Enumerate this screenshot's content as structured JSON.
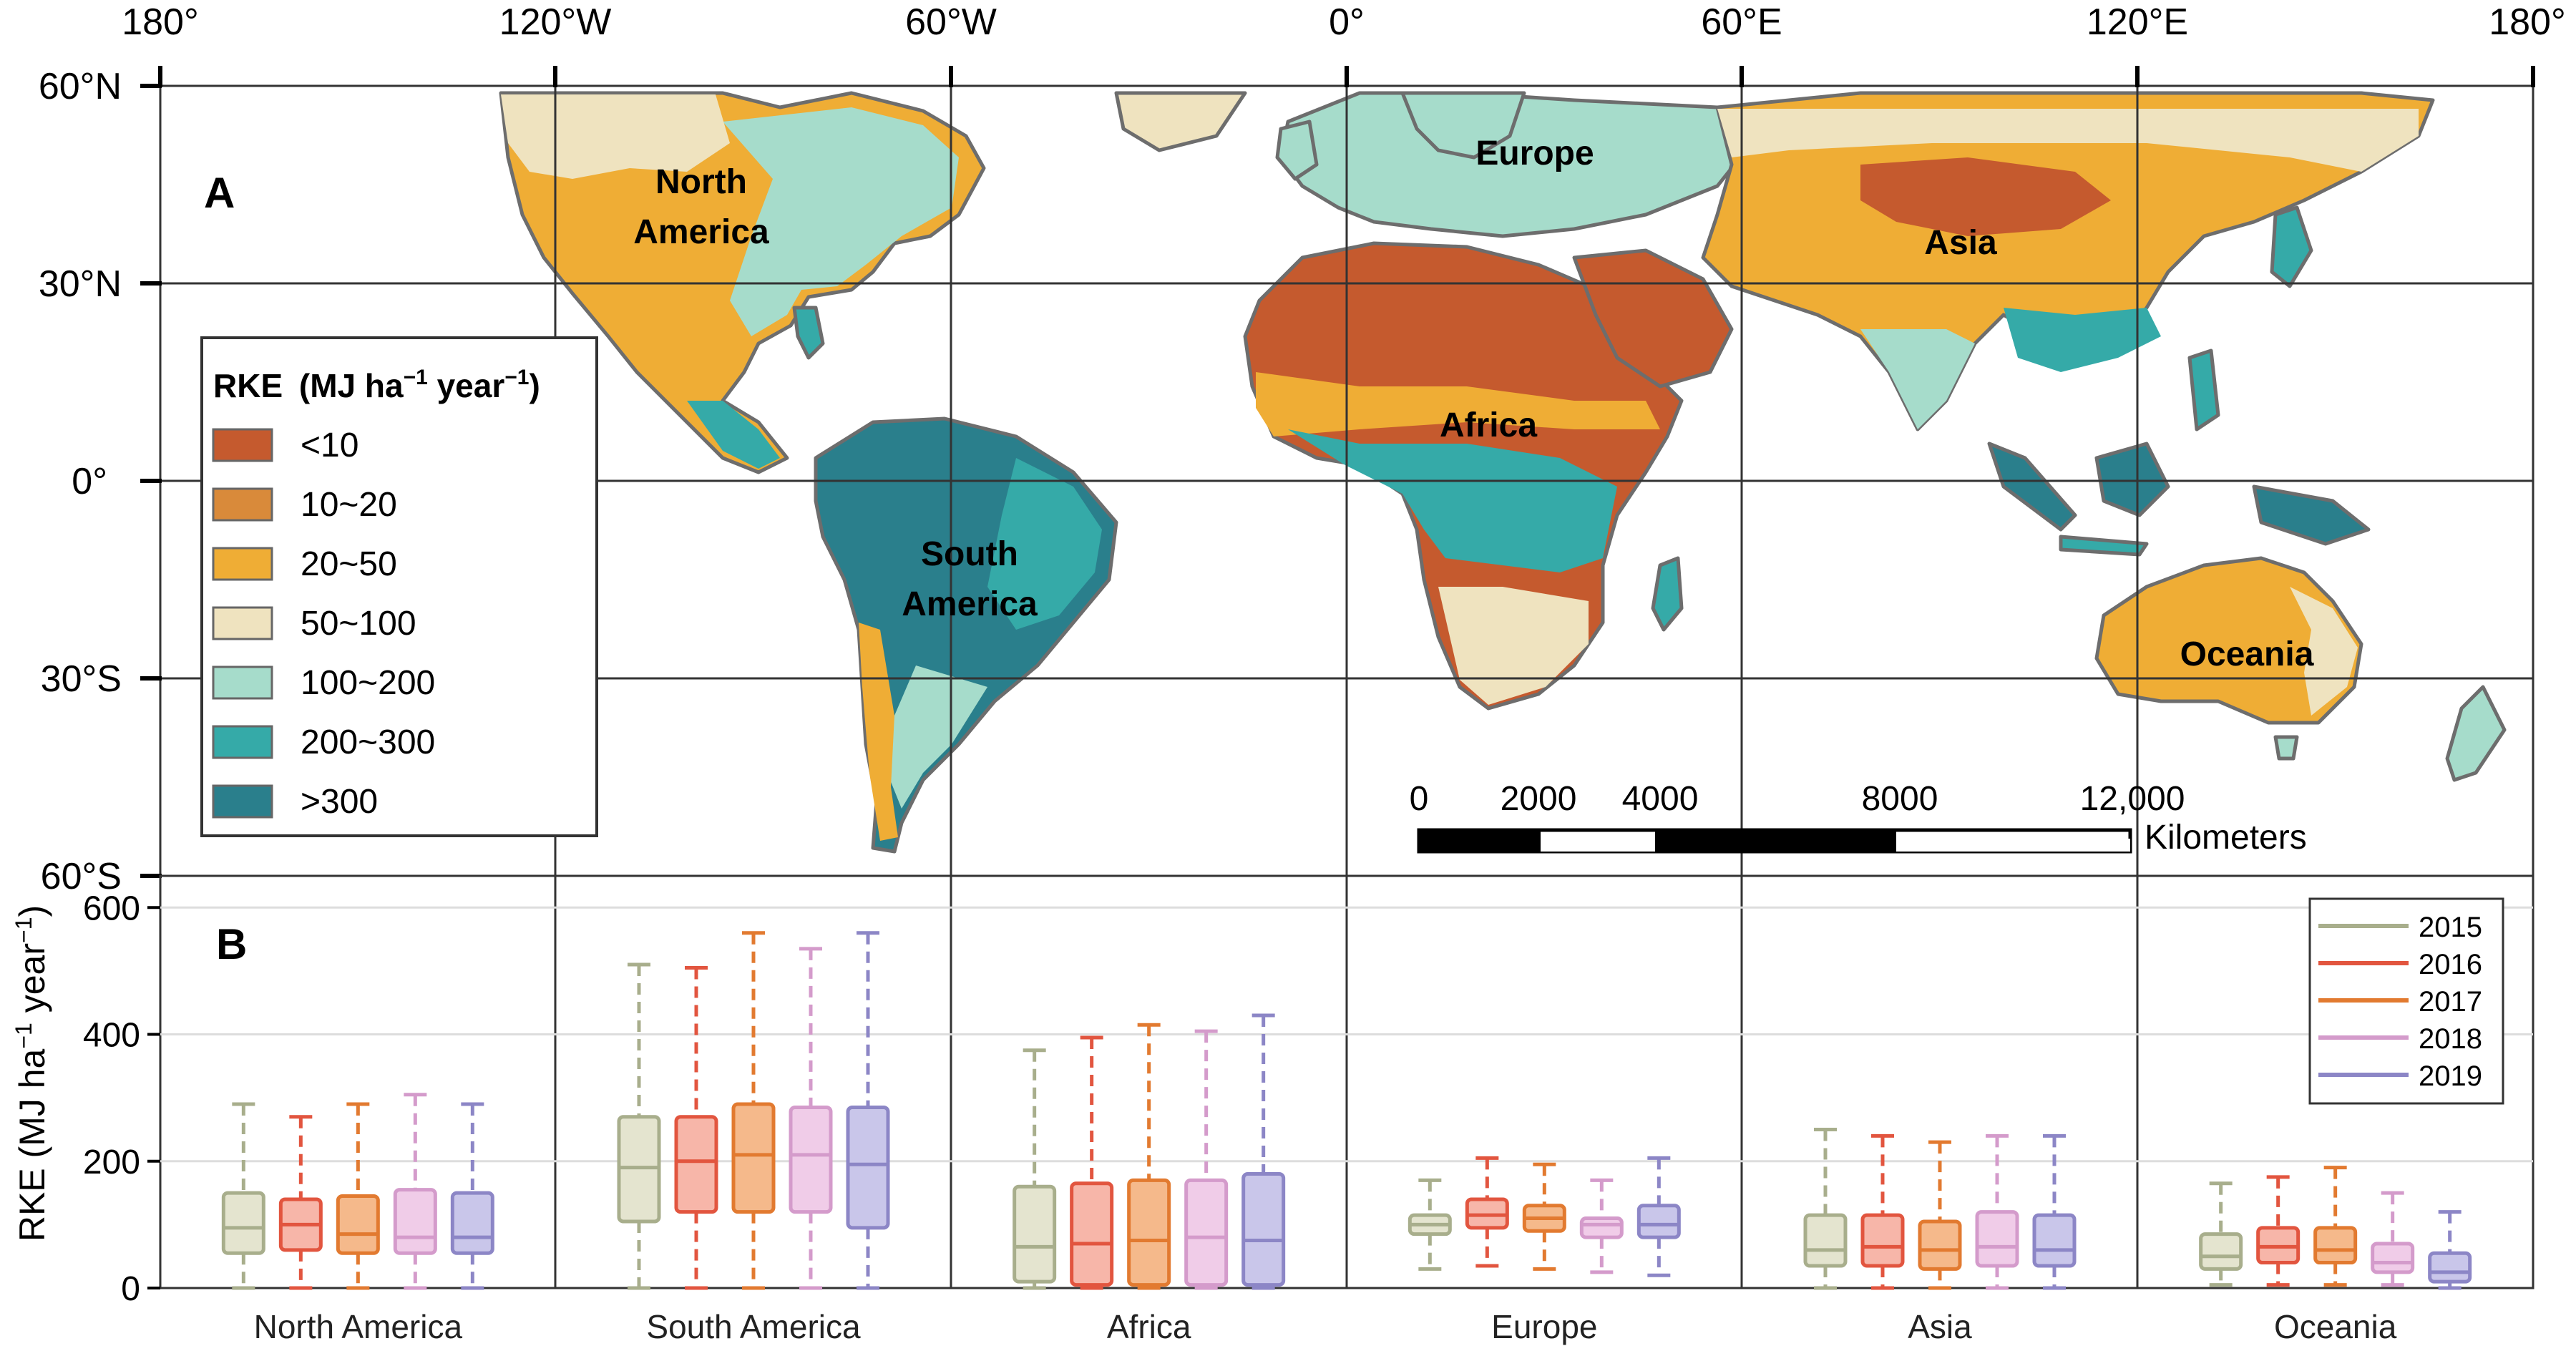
{
  "panel_a": {
    "label": "A",
    "top_ticks": [
      "180°",
      "120°W",
      "60°W",
      "0°",
      "60°E",
      "120°E",
      "180°"
    ],
    "lat_ticks": [
      "60°N",
      "30°N",
      "0°",
      "30°S",
      "60°S"
    ],
    "continent_labels": [
      {
        "text": "North",
        "id": "north-america-1"
      },
      {
        "text": "America",
        "id": "north-america-2"
      },
      {
        "text": "Europe",
        "id": "europe"
      },
      {
        "text": "Asia",
        "id": "asia"
      },
      {
        "text": "Africa",
        "id": "africa"
      },
      {
        "text": "South",
        "id": "south-america-1"
      },
      {
        "text": "America",
        "id": "south-america-2"
      },
      {
        "text": "Oceania",
        "id": "oceania"
      }
    ],
    "legend": {
      "title_main": "RKE",
      "title_unit_a": "(MJ ha",
      "title_exp_a": "−1",
      "title_unit_b": " year",
      "title_exp_b": "−1",
      "title_close": ")",
      "classes": [
        {
          "label": "<10",
          "color": "#c55a2e"
        },
        {
          "label": "10~20",
          "color": "#d98a3a"
        },
        {
          "label": "20~50",
          "color": "#efad35"
        },
        {
          "label": "50~100",
          "color": "#efe3bf"
        },
        {
          "label": "100~200",
          "color": "#a6dccb"
        },
        {
          "label": "200~300",
          "color": "#35aaa8"
        },
        {
          "label": ">300",
          "color": "#2a7f8c"
        }
      ]
    },
    "scale_bar": {
      "labels": [
        "0",
        "2000",
        "4000",
        "8000",
        "12,000"
      ],
      "unit": "Kilometers"
    }
  },
  "panel_b": {
    "label": "B",
    "legend_years": [
      {
        "year": "2015",
        "color": "#a8ae8c"
      },
      {
        "year": "2016",
        "color": "#e2553f"
      },
      {
        "year": "2017",
        "color": "#e27a30"
      },
      {
        "year": "2018",
        "color": "#d49bcb"
      },
      {
        "year": "2019",
        "color": "#8c86c6"
      }
    ]
  },
  "chart_data": {
    "type": "box",
    "ylabel_main": "RKE (MJ ha",
    "ylabel_exp_a": "−1",
    "ylabel_mid": " year",
    "ylabel_exp_b": "−1",
    "ylabel_close": ")",
    "yticks": [
      0,
      200,
      400,
      600
    ],
    "ylim": [
      0,
      650
    ],
    "grid": true,
    "legend_position": "top-right",
    "categories": [
      "North America",
      "South America",
      "Africa",
      "Europe",
      "Asia",
      "Oceania"
    ],
    "series": [
      {
        "name": "2015",
        "color": "#a8ae8c",
        "fill": "#e4e4cf",
        "boxes": [
          {
            "min": 0,
            "q1": 55,
            "median": 95,
            "q3": 150,
            "max": 290
          },
          {
            "min": 0,
            "q1": 105,
            "median": 190,
            "q3": 270,
            "max": 510
          },
          {
            "min": 0,
            "q1": 10,
            "median": 65,
            "q3": 160,
            "max": 375
          },
          {
            "min": 30,
            "q1": 85,
            "median": 100,
            "q3": 115,
            "max": 170
          },
          {
            "min": 0,
            "q1": 35,
            "median": 60,
            "q3": 115,
            "max": 250
          },
          {
            "min": 5,
            "q1": 30,
            "median": 50,
            "q3": 85,
            "max": 165
          }
        ]
      },
      {
        "name": "2016",
        "color": "#e2553f",
        "fill": "#f7b6a9",
        "boxes": [
          {
            "min": 0,
            "q1": 60,
            "median": 100,
            "q3": 140,
            "max": 270
          },
          {
            "min": 0,
            "q1": 120,
            "median": 200,
            "q3": 270,
            "max": 505
          },
          {
            "min": 0,
            "q1": 5,
            "median": 70,
            "q3": 165,
            "max": 395
          },
          {
            "min": 35,
            "q1": 95,
            "median": 115,
            "q3": 140,
            "max": 205
          },
          {
            "min": 0,
            "q1": 35,
            "median": 65,
            "q3": 115,
            "max": 240
          },
          {
            "min": 5,
            "q1": 40,
            "median": 65,
            "q3": 95,
            "max": 175
          }
        ]
      },
      {
        "name": "2017",
        "color": "#e27a30",
        "fill": "#f5b98b",
        "boxes": [
          {
            "min": 0,
            "q1": 55,
            "median": 85,
            "q3": 145,
            "max": 290
          },
          {
            "min": 0,
            "q1": 120,
            "median": 210,
            "q3": 290,
            "max": 560
          },
          {
            "min": 0,
            "q1": 5,
            "median": 75,
            "q3": 170,
            "max": 415
          },
          {
            "min": 30,
            "q1": 90,
            "median": 110,
            "q3": 130,
            "max": 195
          },
          {
            "min": 0,
            "q1": 30,
            "median": 60,
            "q3": 105,
            "max": 230
          },
          {
            "min": 5,
            "q1": 40,
            "median": 60,
            "q3": 95,
            "max": 190
          }
        ]
      },
      {
        "name": "2018",
        "color": "#d49bcb",
        "fill": "#f0cce8",
        "boxes": [
          {
            "min": 0,
            "q1": 55,
            "median": 80,
            "q3": 155,
            "max": 305
          },
          {
            "min": 0,
            "q1": 120,
            "median": 210,
            "q3": 285,
            "max": 535
          },
          {
            "min": 0,
            "q1": 5,
            "median": 80,
            "q3": 170,
            "max": 405
          },
          {
            "min": 25,
            "q1": 80,
            "median": 100,
            "q3": 110,
            "max": 170
          },
          {
            "min": 0,
            "q1": 35,
            "median": 65,
            "q3": 120,
            "max": 240
          },
          {
            "min": 5,
            "q1": 25,
            "median": 40,
            "q3": 70,
            "max": 150
          }
        ]
      },
      {
        "name": "2019",
        "color": "#8c86c6",
        "fill": "#c9c6ea",
        "boxes": [
          {
            "min": 0,
            "q1": 55,
            "median": 80,
            "q3": 150,
            "max": 290
          },
          {
            "min": 0,
            "q1": 95,
            "median": 195,
            "q3": 285,
            "max": 560
          },
          {
            "min": 0,
            "q1": 5,
            "median": 75,
            "q3": 180,
            "max": 430
          },
          {
            "min": 20,
            "q1": 80,
            "median": 100,
            "q3": 130,
            "max": 205
          },
          {
            "min": 0,
            "q1": 35,
            "median": 60,
            "q3": 115,
            "max": 240
          },
          {
            "min": 0,
            "q1": 10,
            "median": 25,
            "q3": 55,
            "max": 120
          }
        ]
      }
    ]
  }
}
